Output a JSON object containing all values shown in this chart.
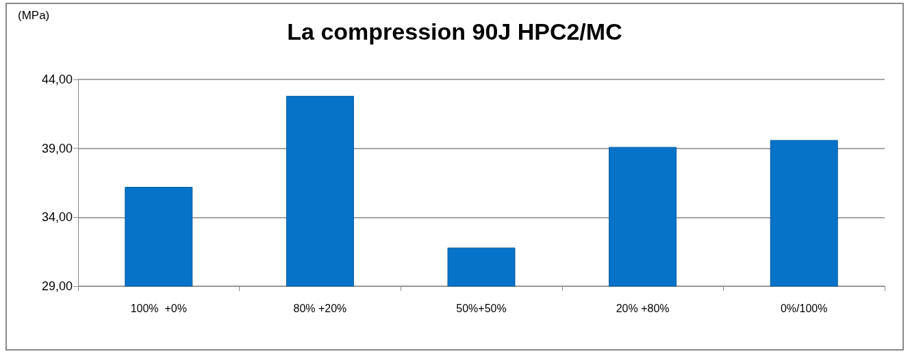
{
  "chart_data": {
    "type": "bar",
    "title": "La compression 90J HPC2/MC",
    "ylabel": "(MPa)",
    "categories": [
      "100%  +0%",
      "80% +20%",
      "50%+50%",
      "20% +80%",
      "0%/100%"
    ],
    "values": [
      36.2,
      42.8,
      31.8,
      39.1,
      39.6
    ],
    "color": "#0673c8",
    "ylim": [
      29,
      44
    ],
    "yticks": [
      {
        "value": 29,
        "label": "29,00"
      },
      {
        "value": 34,
        "label": "34,00"
      },
      {
        "value": 39,
        "label": "39,00"
      },
      {
        "value": 44,
        "label": "44,00"
      }
    ],
    "grid": "y"
  }
}
